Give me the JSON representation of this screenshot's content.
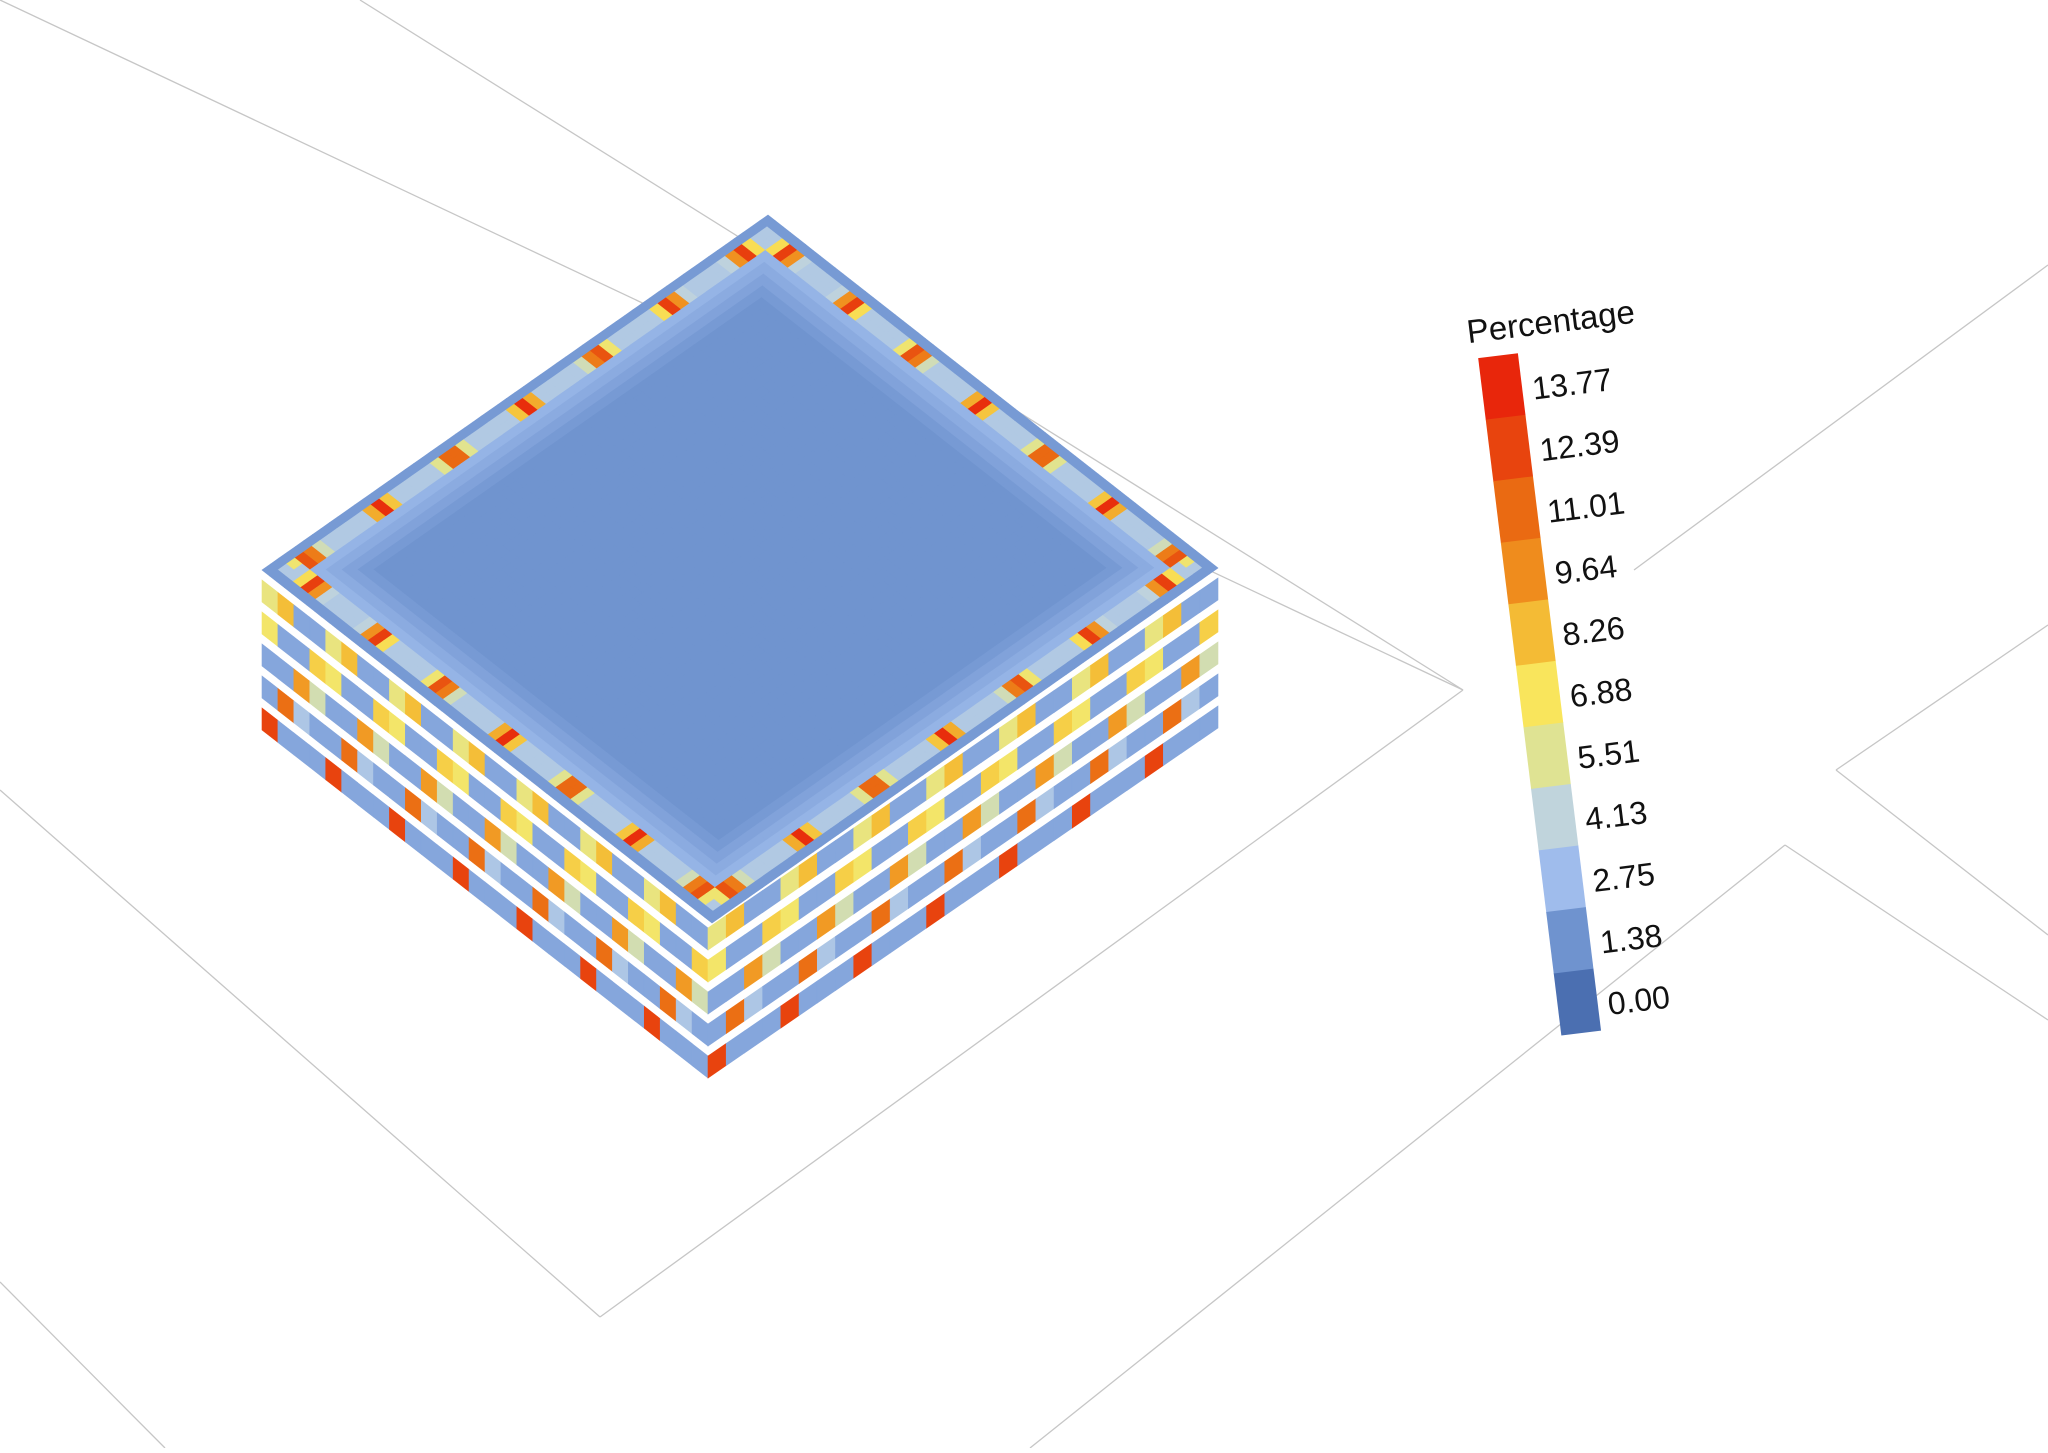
{
  "chart_data": {
    "type": "heatmap",
    "subtype": "stacked-3d-layers",
    "layer_count": 6,
    "legend": {
      "title": "Percentage",
      "placement": "right",
      "ticks": [
        "13.77",
        "12.39",
        "11.01",
        "9.64",
        "8.26",
        "6.88",
        "5.51",
        "4.13",
        "2.75",
        "1.38",
        "0.00"
      ],
      "colors": [
        "#e8260b",
        "#e8440e",
        "#ea6a12",
        "#ef8c1d",
        "#f4bb35",
        "#f9e55c",
        "#dfe393",
        "#c0d4dc",
        "#9fbcec",
        "#6f93cf",
        "#4b6fb1"
      ]
    },
    "value_range": [
      0.0,
      13.77
    ],
    "top_layer": {
      "interior_value": 1.4,
      "edge_value": 3.5,
      "edge_hotspots_per_side": 7,
      "hotspot_peak_value": 13.77
    },
    "side_faces": {
      "hotspot_peak_value": 13.77,
      "background_value": 2.0
    },
    "grid": false
  }
}
